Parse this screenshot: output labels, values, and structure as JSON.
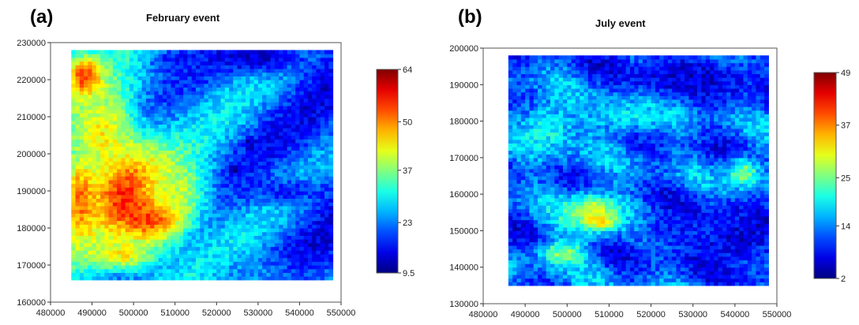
{
  "chart_data": [
    {
      "type": "heatmap",
      "panel_label": "(a)",
      "title": "February event",
      "xlabel": "",
      "ylabel": "",
      "xlim": [
        480000,
        550000
      ],
      "ylim": [
        160000,
        230000
      ],
      "x_ticks": [
        480000,
        490000,
        500000,
        510000,
        520000,
        530000,
        540000,
        550000
      ],
      "y_ticks": [
        160000,
        170000,
        180000,
        190000,
        200000,
        210000,
        220000,
        230000
      ],
      "x_tick_labels": [
        "480000",
        "490000",
        "500000",
        "510000",
        "520000",
        "530000",
        "540000",
        "550000"
      ],
      "y_tick_labels": [
        "160000",
        "170000",
        "180000",
        "190000",
        "200000",
        "210000",
        "220000",
        "230000"
      ],
      "data_extent": {
        "x": [
          485000,
          548000
        ],
        "y": [
          166000,
          228000
        ]
      },
      "colorbar": {
        "min": 9.5,
        "max": 64,
        "ticks": [
          9.5,
          23,
          37,
          50,
          64
        ],
        "tick_labels": [
          "9.5",
          "23",
          "37",
          "50",
          "64"
        ]
      },
      "grid": false,
      "colormap": "jet",
      "features": [
        {
          "kind": "blob",
          "x": 499000,
          "y": 190000,
          "sx": 7000,
          "sy": 9000,
          "v": 58
        },
        {
          "kind": "blob",
          "x": 505000,
          "y": 184000,
          "sx": 5000,
          "sy": 5000,
          "v": 60
        },
        {
          "kind": "blob",
          "x": 488000,
          "y": 221000,
          "sx": 3000,
          "sy": 4000,
          "v": 56
        },
        {
          "kind": "blob",
          "x": 487000,
          "y": 188000,
          "sx": 3000,
          "sy": 8000,
          "v": 52
        },
        {
          "kind": "blob",
          "x": 493000,
          "y": 206000,
          "sx": 5000,
          "sy": 8000,
          "v": 44
        },
        {
          "kind": "blob",
          "x": 497000,
          "y": 173000,
          "sx": 6000,
          "sy": 3000,
          "v": 44
        },
        {
          "kind": "blob",
          "x": 510000,
          "y": 190000,
          "sx": 6000,
          "sy": 6000,
          "v": 40
        },
        {
          "kind": "blob",
          "x": 510000,
          "y": 225000,
          "sx": 5000,
          "sy": 3000,
          "v": 18
        },
        {
          "kind": "blob",
          "x": 530000,
          "y": 226000,
          "sx": 9000,
          "sy": 3000,
          "v": 14
        },
        {
          "kind": "blob",
          "x": 524000,
          "y": 196000,
          "sx": 1000,
          "sy": 1000,
          "v": 10
        },
        {
          "kind": "blob",
          "x": 528000,
          "y": 203000,
          "sx": 1000,
          "sy": 1000,
          "v": 12
        },
        {
          "kind": "blob",
          "x": 537000,
          "y": 190000,
          "sx": 9000,
          "sy": 2500,
          "v": 18
        },
        {
          "kind": "blob",
          "x": 530000,
          "y": 168000,
          "sx": 7000,
          "sy": 3000,
          "v": 24
        }
      ],
      "base_value": 28
    },
    {
      "type": "heatmap",
      "panel_label": "(b)",
      "title": "July event",
      "xlabel": "",
      "ylabel": "",
      "xlim": [
        480000,
        550000
      ],
      "ylim": [
        130000,
        200000
      ],
      "x_ticks": [
        480000,
        490000,
        500000,
        510000,
        520000,
        530000,
        540000,
        550000
      ],
      "y_ticks": [
        130000,
        140000,
        150000,
        160000,
        170000,
        180000,
        190000,
        200000
      ],
      "x_tick_labels": [
        "480000",
        "490000",
        "500000",
        "510000",
        "520000",
        "530000",
        "540000",
        "550000"
      ],
      "y_tick_labels": [
        "130000",
        "140000",
        "150000",
        "160000",
        "170000",
        "180000",
        "190000",
        "200000"
      ],
      "data_extent": {
        "x": [
          486000,
          548000
        ],
        "y": [
          135000,
          198000
        ]
      },
      "colorbar": {
        "min": 2,
        "max": 49,
        "ticks": [
          2,
          14,
          25,
          37,
          49
        ],
        "tick_labels": [
          "2",
          "14",
          "25",
          "37",
          "49"
        ]
      },
      "grid": false,
      "colormap": "jet",
      "features": [
        {
          "kind": "blob",
          "x": 508000,
          "y": 153000,
          "sx": 2000,
          "sy": 1500,
          "v": 47
        },
        {
          "kind": "blob",
          "x": 506000,
          "y": 155000,
          "sx": 5000,
          "sy": 4000,
          "v": 30
        },
        {
          "kind": "blob",
          "x": 499000,
          "y": 144000,
          "sx": 4000,
          "sy": 2500,
          "v": 26
        },
        {
          "kind": "blob",
          "x": 542000,
          "y": 166000,
          "sx": 3000,
          "sy": 3000,
          "v": 26
        },
        {
          "kind": "blob",
          "x": 495000,
          "y": 178000,
          "sx": 5000,
          "sy": 6000,
          "v": 20
        },
        {
          "kind": "blob",
          "x": 515000,
          "y": 182000,
          "sx": 8000,
          "sy": 4000,
          "v": 19
        },
        {
          "kind": "blob",
          "x": 530000,
          "y": 192000,
          "sx": 12000,
          "sy": 4000,
          "v": 6
        },
        {
          "kind": "blob",
          "x": 540000,
          "y": 148000,
          "sx": 8000,
          "sy": 6000,
          "v": 6
        },
        {
          "kind": "blob",
          "x": 525000,
          "y": 150000,
          "sx": 6000,
          "sy": 4000,
          "v": 9
        }
      ],
      "base_value": 12
    }
  ]
}
